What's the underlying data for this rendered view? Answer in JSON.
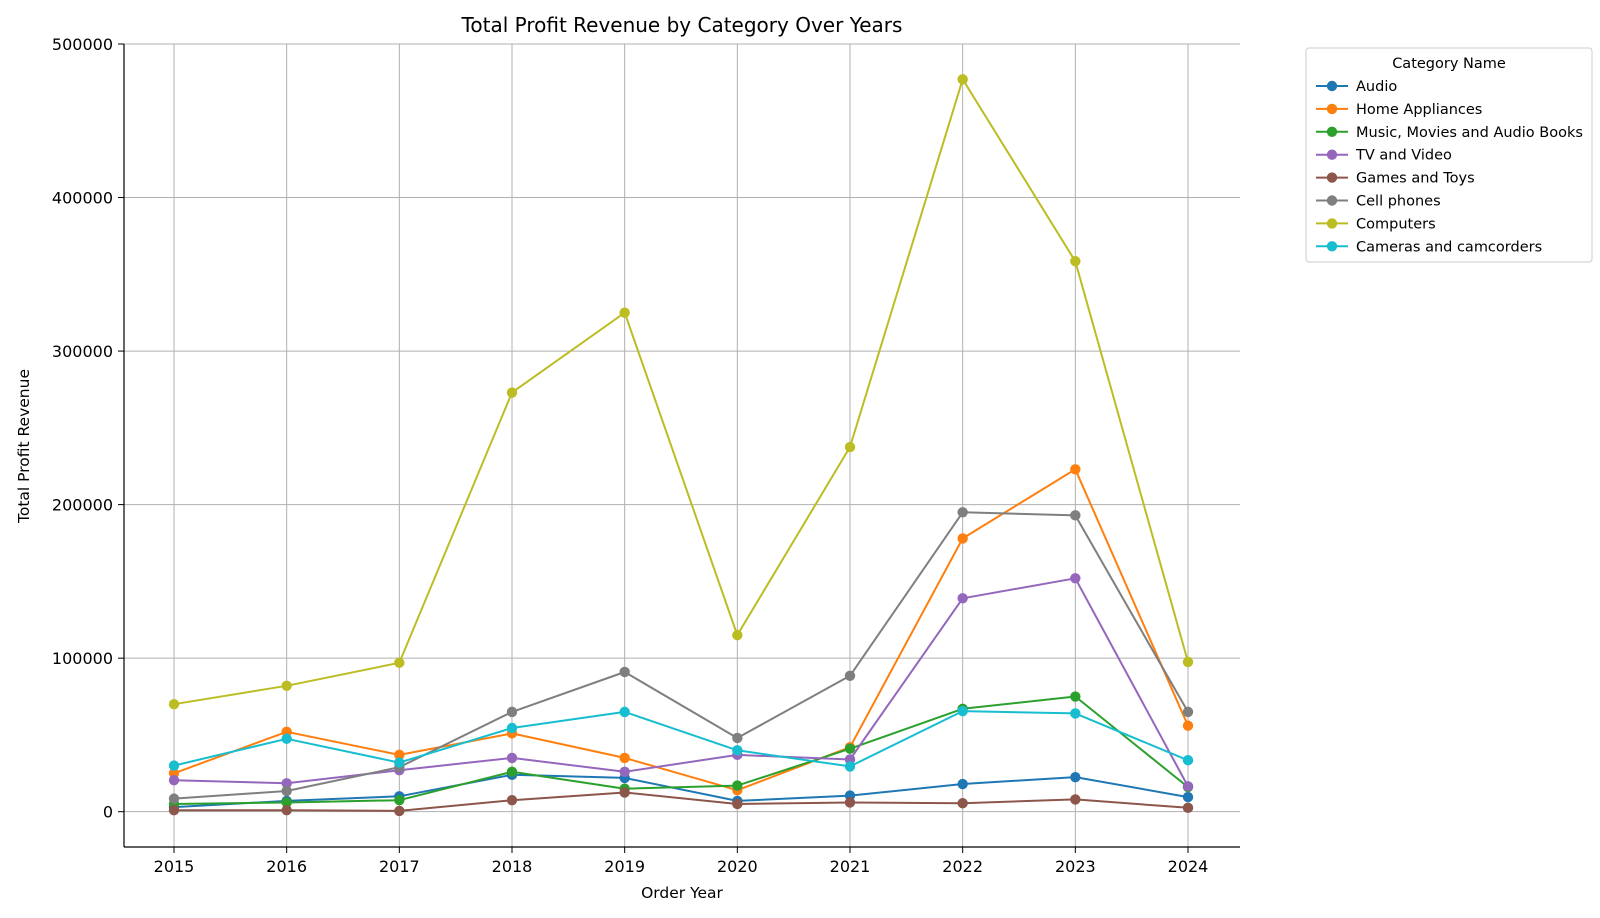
{
  "chart_data": {
    "type": "line",
    "title": "Total Profit Revenue by Category Over Years",
    "xlabel": "Order Year",
    "ylabel": "Total Profit Revenue",
    "x": [
      2015,
      2016,
      2017,
      2018,
      2019,
      2020,
      2021,
      2022,
      2023,
      2024
    ],
    "ylim": [
      -23000,
      500000
    ],
    "yticks": [
      0,
      100000,
      200000,
      300000,
      400000,
      500000
    ],
    "grid": true,
    "legend": {
      "title": "Category Name",
      "placement": "outside-top-right"
    },
    "series": [
      {
        "name": "Audio",
        "color": "#1f77b4",
        "values": [
          3000,
          7000,
          10000,
          24000,
          22000,
          7000,
          10500,
          18000,
          22500,
          9500
        ]
      },
      {
        "name": "Home Appliances",
        "color": "#ff7f0e",
        "values": [
          25000,
          52000,
          37000,
          51000,
          35000,
          14000,
          42000,
          178000,
          223000,
          56000
        ]
      },
      {
        "name": "Music, Movies and Audio Books",
        "color": "#2ca02c",
        "values": [
          5000,
          6000,
          7500,
          26000,
          15000,
          17000,
          41000,
          67000,
          75000,
          16000
        ]
      },
      {
        "name": "TV and Video",
        "color": "#9467bd",
        "values": [
          20500,
          18500,
          27000,
          35000,
          26000,
          37000,
          34000,
          139000,
          152000,
          16500
        ]
      },
      {
        "name": "Games and Toys",
        "color": "#8c564b",
        "values": [
          1000,
          1000,
          500,
          7500,
          12500,
          5000,
          6000,
          5500,
          8000,
          2500
        ]
      },
      {
        "name": "Cell phones",
        "color": "#7f7f7f",
        "values": [
          8500,
          13500,
          29000,
          65000,
          91000,
          48000,
          88500,
          195000,
          193000,
          65000
        ]
      },
      {
        "name": "Computers",
        "color": "#bcbd22",
        "values": [
          70000,
          82000,
          97000,
          273000,
          325000,
          115000,
          237500,
          477000,
          358500,
          97500
        ]
      },
      {
        "name": "Cameras and camcorders",
        "color": "#17becf",
        "values": [
          30000,
          47500,
          32000,
          54500,
          65000,
          40000,
          29500,
          65500,
          64000,
          33500
        ]
      }
    ]
  }
}
